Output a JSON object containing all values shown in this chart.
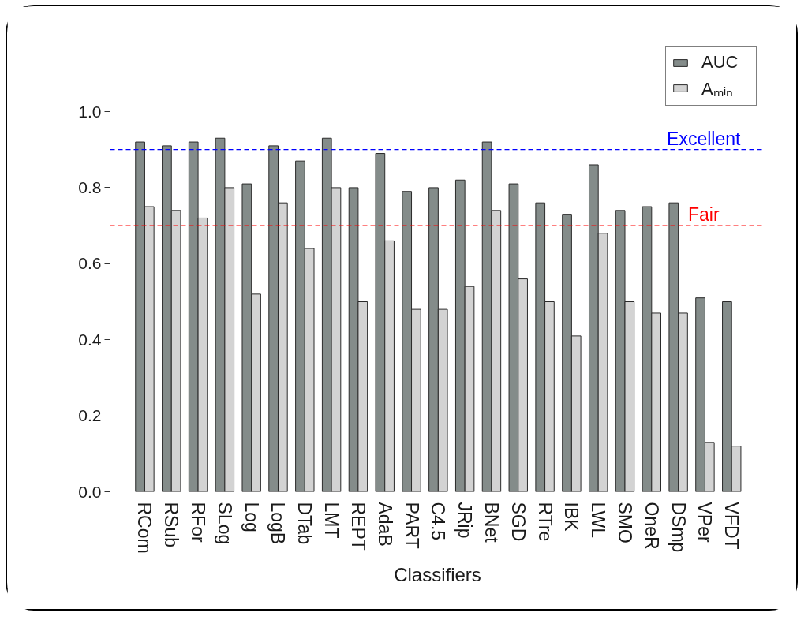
{
  "chart_data": {
    "type": "bar",
    "xlabel": "Classifiers",
    "categories": [
      "RCom",
      "RSub",
      "RFor",
      "SLog",
      "Log",
      "LogB",
      "DTab",
      "LMT",
      "REPT",
      "AdaB",
      "PART",
      "C4.5",
      "JRip",
      "BNet",
      "SGD",
      "RTre",
      "IBK",
      "LWL",
      "SMO",
      "OneR",
      "DSmp",
      "VPer",
      "VFDT"
    ],
    "series": [
      {
        "name": "AUC",
        "color": "#848c8a",
        "values": [
          0.92,
          0.91,
          0.92,
          0.93,
          0.81,
          0.91,
          0.87,
          0.93,
          0.8,
          0.89,
          0.79,
          0.8,
          0.82,
          0.92,
          0.81,
          0.76,
          0.73,
          0.86,
          0.74,
          0.75,
          0.76,
          0.51,
          0.5
        ]
      },
      {
        "name": "Aₘᵢₙ",
        "color": "#d3d3d3",
        "values": [
          0.75,
          0.74,
          0.72,
          0.8,
          0.52,
          0.76,
          0.64,
          0.8,
          0.5,
          0.66,
          0.48,
          0.48,
          0.54,
          0.74,
          0.56,
          0.5,
          0.41,
          0.68,
          0.5,
          0.47,
          0.47,
          0.13,
          0.12
        ]
      }
    ],
    "ylim": [
      0,
      1
    ],
    "yticks": [
      {
        "value": 0,
        "label": "0.0"
      },
      0.2,
      0.4,
      0.6,
      0.8,
      {
        "value": 1,
        "label": "1.0"
      }
    ],
    "ref_lines": [
      {
        "axis": "y",
        "value": 0.9,
        "label": "Excellent",
        "color": "#0000ff",
        "line_style": "dashed"
      },
      {
        "axis": "y",
        "value": 0.7,
        "label": "Fair",
        "color": "#ff0000",
        "line_style": "dashed"
      }
    ],
    "legend": "top right"
  }
}
